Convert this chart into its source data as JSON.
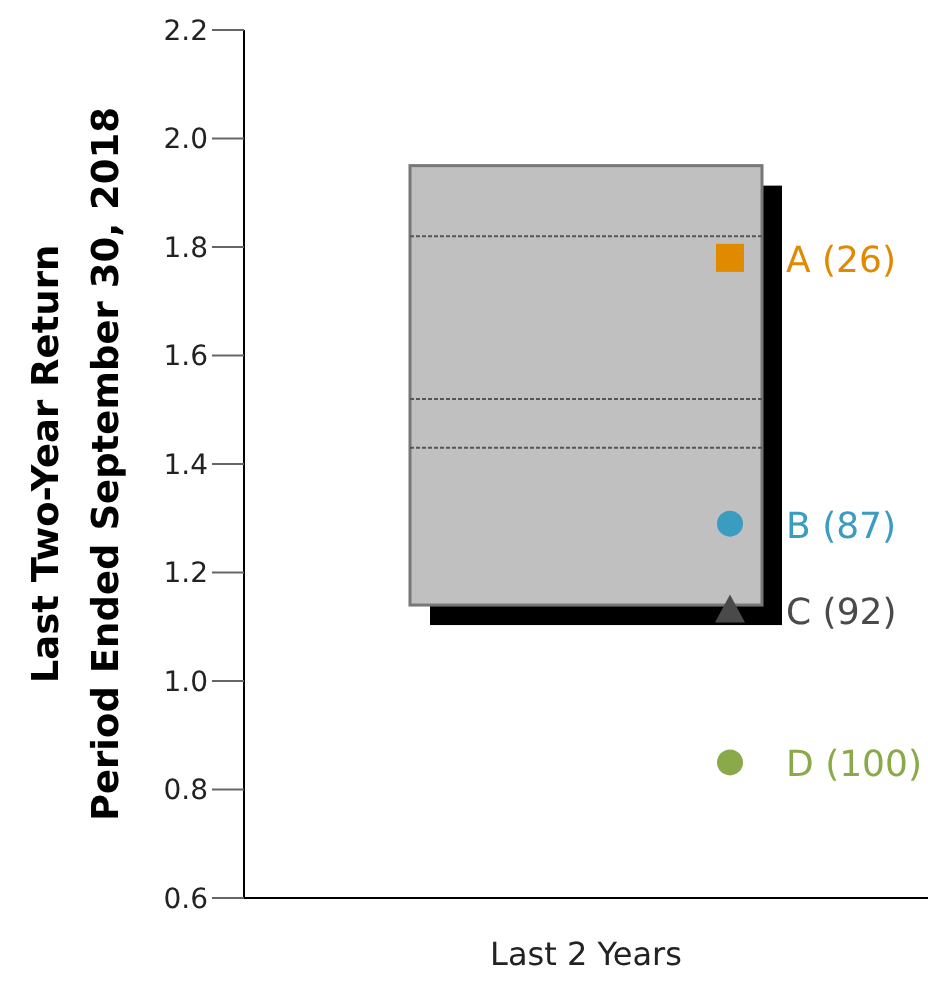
{
  "chart_data": {
    "type": "bar",
    "ylabel": "Last Two-Year Return\nPeriod Ended September 30, 2018",
    "categories": [
      "Last 2 Years"
    ],
    "ref_lines": [
      {
        "axis": "y",
        "value": 1.43,
        "color": "#555555",
        "line_style": "dotted"
      },
      {
        "axis": "y",
        "value": 1.52,
        "color": "#555555",
        "line_style": "dotted"
      },
      {
        "axis": "y",
        "value": 1.82,
        "color": "#555555",
        "line_style": "dotted"
      }
    ],
    "ylim": [
      0.6,
      2.2
    ],
    "yticks": [
      0.6,
      0.8,
      {
        "value": 1,
        "label": "1.0"
      },
      1.2,
      1.4,
      1.6,
      1.8,
      {
        "value": 2,
        "label": "2.0"
      },
      2.2
    ],
    "series": [
      {
        "color": "#c0c0c0",
        "base": [
          1.14
        ],
        "values": [
          0.81
        ]
      },
      {
        "type": "scatter",
        "name": "A (26)",
        "color": "#e08a00",
        "marker": "square",
        "x": [
          "Last 2 Years"
        ],
        "values": [
          1.78
        ]
      },
      {
        "type": "scatter",
        "name": "B (87)",
        "color": "#3a9cc0",
        "marker": "circle",
        "x": [
          "Last 2 Years"
        ],
        "values": [
          1.29
        ]
      },
      {
        "type": "scatter",
        "name": "C (92)",
        "color": "#4a4a4a",
        "marker": "triangle",
        "x": [
          "Last 2 Years"
        ],
        "values": [
          1.13
        ]
      },
      {
        "type": "scatter",
        "name": "D (100)",
        "color": "#8aaa4a",
        "marker": "circle",
        "x": [
          "Last 2 Years"
        ],
        "values": [
          0.85
        ]
      }
    ]
  }
}
